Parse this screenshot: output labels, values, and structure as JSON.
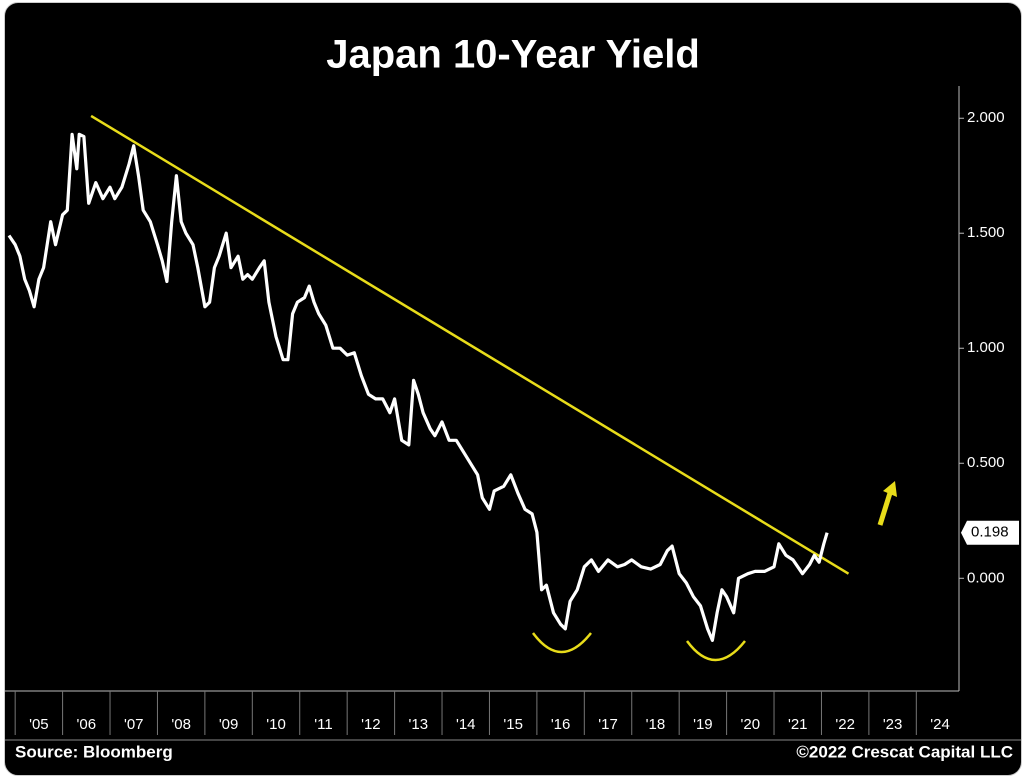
{
  "chart_data": {
    "type": "line",
    "title": "Japan 10-Year Yield",
    "source": "Source: Bloomberg",
    "credit": "©2022 Crescat Capital LLC",
    "color": "#ffffff",
    "x": [
      2004.87,
      2005.0,
      2005.1,
      2005.2,
      2005.3,
      2005.4,
      2005.5,
      2005.6,
      2005.75,
      2005.85,
      2006.0,
      2006.1,
      2006.2,
      2006.3,
      2006.35,
      2006.45,
      2006.55,
      2006.7,
      2006.85,
      2007.0,
      2007.1,
      2007.25,
      2007.4,
      2007.5,
      2007.6,
      2007.7,
      2007.85,
      2008.0,
      2008.1,
      2008.2,
      2008.3,
      2008.4,
      2008.5,
      2008.6,
      2008.75,
      2008.85,
      2009.0,
      2009.1,
      2009.2,
      2009.3,
      2009.45,
      2009.55,
      2009.7,
      2009.8,
      2009.9,
      2010.0,
      2010.15,
      2010.25,
      2010.35,
      2010.5,
      2010.65,
      2010.75,
      2010.85,
      2010.95,
      2011.1,
      2011.2,
      2011.3,
      2011.4,
      2011.55,
      2011.7,
      2011.85,
      2012.0,
      2012.15,
      2012.3,
      2012.45,
      2012.6,
      2012.75,
      2012.9,
      2013.0,
      2013.15,
      2013.3,
      2013.4,
      2013.5,
      2013.6,
      2013.75,
      2013.85,
      2014.0,
      2014.15,
      2014.3,
      2014.45,
      2014.6,
      2014.75,
      2014.85,
      2015.0,
      2015.1,
      2015.3,
      2015.45,
      2015.6,
      2015.75,
      2015.9,
      2016.0,
      2016.1,
      2016.2,
      2016.35,
      2016.5,
      2016.6,
      2016.7,
      2016.85,
      2017.0,
      2017.15,
      2017.3,
      2017.5,
      2017.7,
      2017.85,
      2018.0,
      2018.2,
      2018.4,
      2018.6,
      2018.75,
      2018.85,
      2019.0,
      2019.15,
      2019.3,
      2019.45,
      2019.6,
      2019.7,
      2019.8,
      2019.9,
      2020.0,
      2020.15,
      2020.25,
      2020.45,
      2020.6,
      2020.8,
      2021.0,
      2021.1,
      2021.25,
      2021.4,
      2021.6,
      2021.75,
      2021.85,
      2021.95,
      2022.05,
      2022.12
    ],
    "values": [
      1.49,
      1.45,
      1.4,
      1.3,
      1.25,
      1.18,
      1.3,
      1.35,
      1.55,
      1.45,
      1.58,
      1.6,
      1.93,
      1.78,
      1.93,
      1.92,
      1.63,
      1.72,
      1.65,
      1.7,
      1.65,
      1.7,
      1.8,
      1.88,
      1.75,
      1.6,
      1.55,
      1.45,
      1.38,
      1.29,
      1.55,
      1.75,
      1.55,
      1.5,
      1.45,
      1.35,
      1.18,
      1.2,
      1.35,
      1.4,
      1.5,
      1.35,
      1.4,
      1.3,
      1.32,
      1.3,
      1.35,
      1.38,
      1.2,
      1.05,
      0.95,
      0.95,
      1.15,
      1.2,
      1.22,
      1.27,
      1.2,
      1.15,
      1.1,
      1.0,
      1.0,
      0.97,
      0.98,
      0.88,
      0.8,
      0.78,
      0.78,
      0.72,
      0.78,
      0.6,
      0.58,
      0.86,
      0.8,
      0.72,
      0.65,
      0.62,
      0.68,
      0.6,
      0.6,
      0.55,
      0.5,
      0.45,
      0.35,
      0.3,
      0.38,
      0.4,
      0.45,
      0.37,
      0.3,
      0.28,
      0.2,
      -0.05,
      -0.03,
      -0.15,
      -0.2,
      -0.22,
      -0.1,
      -0.05,
      0.05,
      0.08,
      0.03,
      0.08,
      0.05,
      0.06,
      0.08,
      0.05,
      0.04,
      0.06,
      0.12,
      0.14,
      0.02,
      -0.02,
      -0.08,
      -0.12,
      -0.22,
      -0.27,
      -0.15,
      -0.05,
      -0.08,
      -0.15,
      0.0,
      0.02,
      0.03,
      0.03,
      0.05,
      0.15,
      0.1,
      0.08,
      0.02,
      0.06,
      0.1,
      0.07,
      0.15,
      0.198
    ],
    "current_value": 0.198,
    "trend_line": {
      "x": [
        2006.6,
        2022.57
      ],
      "values": [
        2.01,
        0.02
      ],
      "color": "#e8dc1a"
    },
    "xlim": [
      2004.87,
      2024.9
    ],
    "xticks": [
      {
        "value": 2005,
        "label": "'05"
      },
      {
        "value": 2006,
        "label": "'06"
      },
      {
        "value": 2007,
        "label": "'07"
      },
      {
        "value": 2008,
        "label": "'08"
      },
      {
        "value": 2009,
        "label": "'09"
      },
      {
        "value": 2010,
        "label": "'10"
      },
      {
        "value": 2011,
        "label": "'11"
      },
      {
        "value": 2012,
        "label": "'12"
      },
      {
        "value": 2013,
        "label": "'13"
      },
      {
        "value": 2014,
        "label": "'14"
      },
      {
        "value": 2015,
        "label": "'15"
      },
      {
        "value": 2016,
        "label": "'16"
      },
      {
        "value": 2017,
        "label": "'17"
      },
      {
        "value": 2018,
        "label": "'18"
      },
      {
        "value": 2019,
        "label": "'19"
      },
      {
        "value": 2020,
        "label": "'20"
      },
      {
        "value": 2021,
        "label": "'21"
      },
      {
        "value": 2022,
        "label": "'22"
      },
      {
        "value": 2023,
        "label": "'23"
      },
      {
        "value": 2024,
        "label": "'24"
      }
    ],
    "ylim": [
      -0.49,
      2.14
    ],
    "yticks": [
      {
        "value": 0,
        "label": "0.000"
      },
      {
        "value": 0.5,
        "label": "0.500"
      },
      {
        "value": 1,
        "label": "1.000"
      },
      {
        "value": 1.5,
        "label": "1.500"
      },
      {
        "value": 2,
        "label": "2.000"
      }
    ],
    "grid": false
  }
}
